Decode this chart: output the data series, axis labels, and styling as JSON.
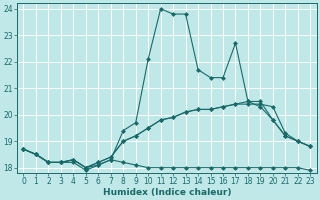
{
  "xlabel": "Humidex (Indice chaleur)",
  "ylabel": "",
  "bg_color": "#c0e8e8",
  "grid_color": "#b0d8d8",
  "line_color": "#1a6a6a",
  "xlim": [
    -0.5,
    23.5
  ],
  "ylim": [
    17.8,
    24.2
  ],
  "xticks": [
    0,
    1,
    2,
    3,
    4,
    5,
    6,
    7,
    8,
    9,
    10,
    11,
    12,
    13,
    14,
    15,
    16,
    17,
    18,
    19,
    20,
    21,
    22,
    23
  ],
  "yticks": [
    18,
    19,
    20,
    21,
    22,
    23,
    24
  ],
  "series": [
    [
      18.7,
      18.5,
      18.2,
      18.2,
      18.2,
      17.9,
      18.1,
      18.3,
      19.4,
      19.7,
      22.1,
      24.0,
      23.8,
      23.8,
      21.7,
      21.4,
      21.4,
      22.7,
      20.5,
      20.3,
      19.8,
      19.2,
      19.0,
      18.8
    ],
    [
      18.7,
      18.5,
      18.2,
      18.2,
      18.3,
      18.0,
      18.1,
      18.3,
      18.2,
      18.1,
      18.0,
      18.0,
      18.0,
      18.0,
      18.0,
      18.0,
      18.0,
      18.0,
      18.0,
      18.0,
      18.0,
      18.0,
      18.0,
      17.9
    ],
    [
      18.7,
      18.5,
      18.2,
      18.2,
      18.3,
      18.0,
      18.2,
      18.4,
      19.0,
      19.2,
      19.5,
      19.8,
      19.9,
      20.1,
      20.2,
      20.2,
      20.3,
      20.4,
      20.4,
      20.4,
      20.3,
      19.3,
      19.0,
      18.8
    ],
    [
      18.7,
      18.5,
      18.2,
      18.2,
      18.3,
      18.0,
      18.2,
      18.4,
      19.0,
      19.2,
      19.5,
      19.8,
      19.9,
      20.1,
      20.2,
      20.2,
      20.3,
      20.4,
      20.5,
      20.5,
      19.8,
      19.2,
      19.0,
      18.8
    ]
  ],
  "marker": "D",
  "markersize": 2.0,
  "linewidth": 0.8,
  "tick_fontsize": 5.5,
  "xlabel_fontsize": 6.5
}
